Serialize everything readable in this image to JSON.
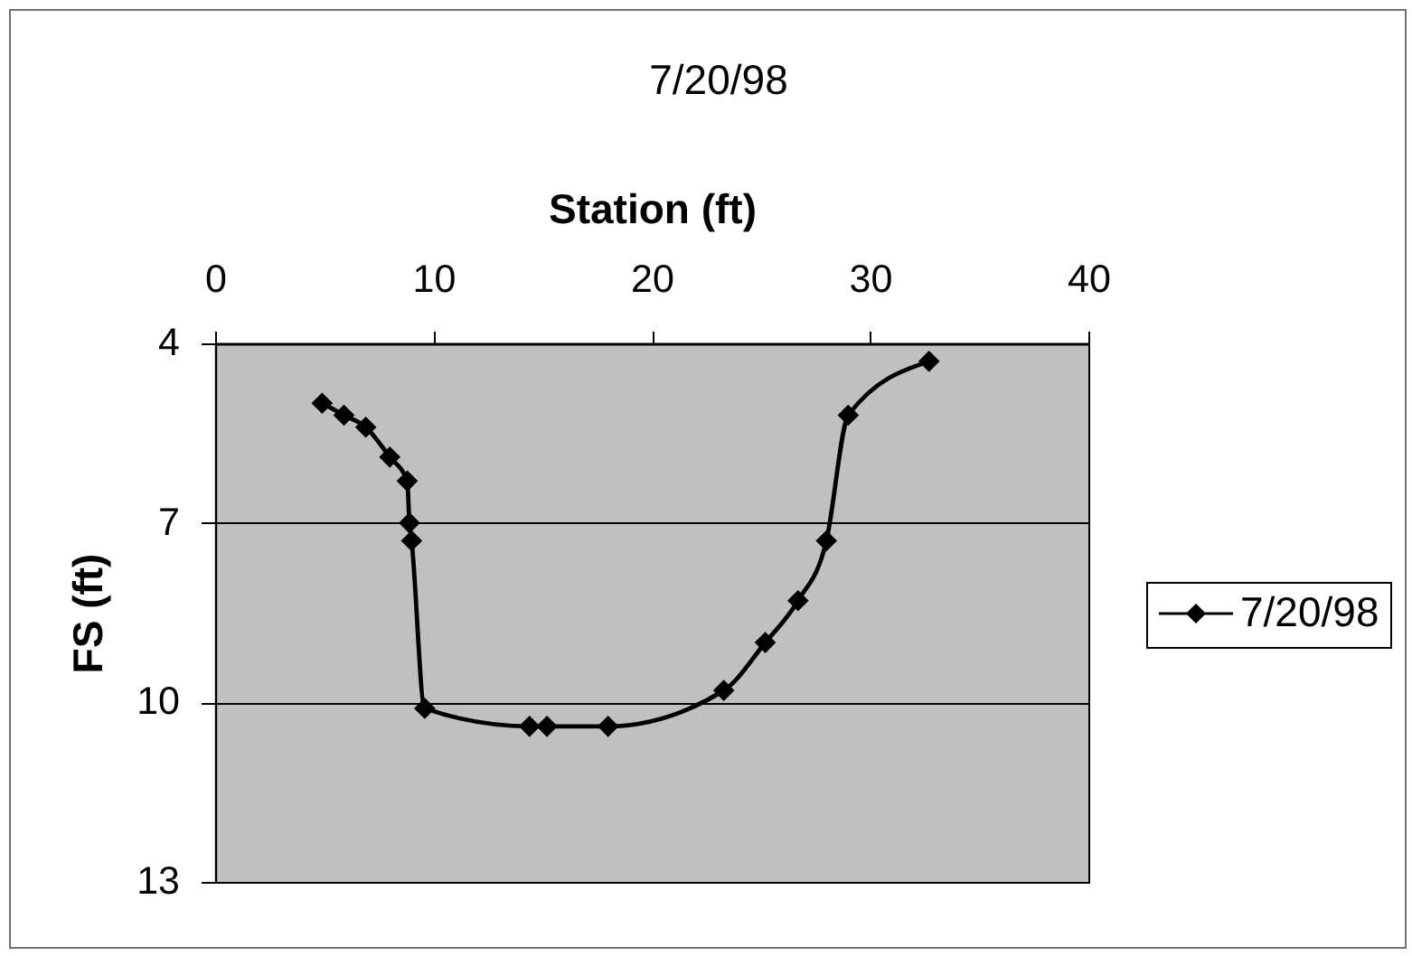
{
  "chart_data": {
    "type": "line",
    "title": "7/20/98",
    "xlabel": "Station (ft)",
    "ylabel": "FS (ft)",
    "x": [
      4.9,
      5.9,
      6.9,
      8.0,
      8.8,
      8.9,
      9.0,
      9.6,
      14.4,
      15.2,
      18.0,
      23.3,
      25.2,
      26.7,
      28.0,
      29.0,
      32.7
    ],
    "series": [
      {
        "name": "7/20/98",
        "color": "#000000",
        "values": [
          5.0,
          5.2,
          5.4,
          5.9,
          6.3,
          7.0,
          7.3,
          10.1,
          10.4,
          10.4,
          10.4,
          9.8,
          9.0,
          8.3,
          7.3,
          5.2,
          4.3
        ]
      }
    ],
    "xlim": [
      0,
      40
    ],
    "xticks": [
      0,
      10,
      20,
      30,
      40
    ],
    "ylim": [
      13,
      4
    ],
    "yticks": [
      4,
      7,
      10,
      13
    ],
    "grid": "y",
    "legend": "right",
    "marker": "diamond",
    "line_style": "solid"
  }
}
